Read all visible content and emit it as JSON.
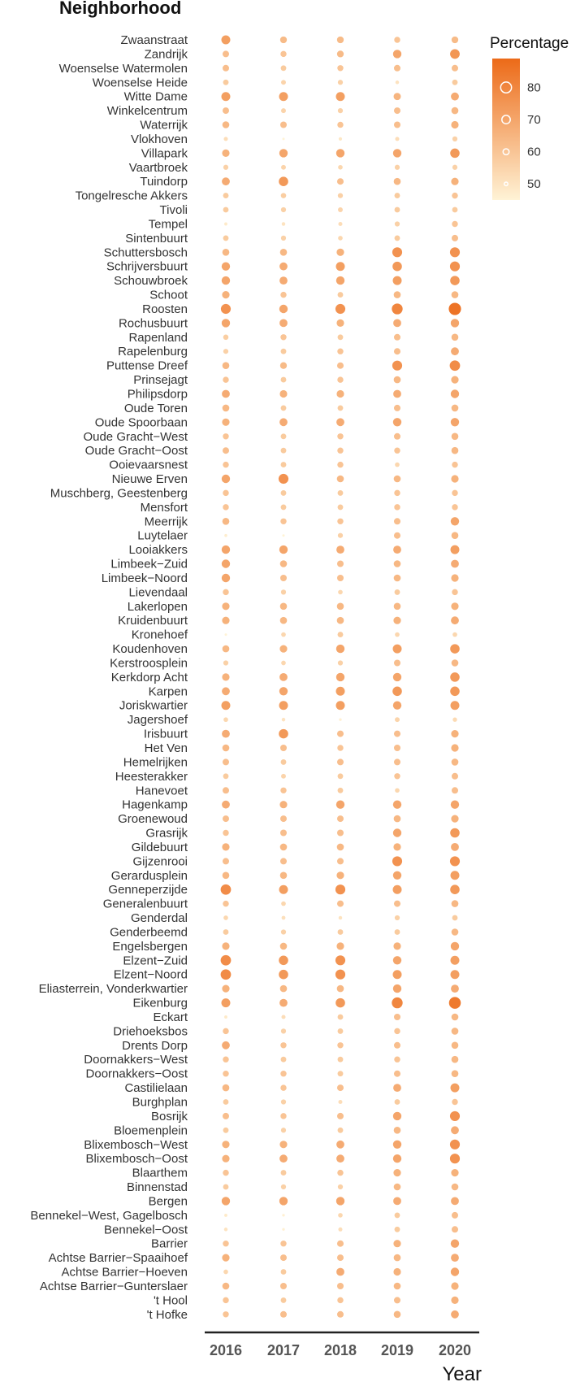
{
  "chart_data": {
    "type": "scatter",
    "title": "Neighborhood",
    "xlabel": "Year",
    "ylabel": "Neighborhood",
    "years": [
      "2016",
      "2017",
      "2018",
      "2019",
      "2020"
    ],
    "legend": {
      "title": "Percentage",
      "ticks": [
        80,
        70,
        60,
        50
      ],
      "range": [
        45,
        89
      ],
      "placement": "right",
      "color_low": "#fff3d6",
      "color_high": "#ec6a18"
    },
    "neighborhoods": [
      "Zwaanstraat",
      "Zandrijk",
      "Woenselse Watermolen",
      "Woenselse Heide",
      "Witte Dame",
      "Winkelcentrum",
      "Waterrijk",
      "Vlokhoven",
      "Villapark",
      "Vaartbroek",
      "Tuindorp",
      "Tongelresche Akkers",
      "Tivoli",
      "Tempel",
      "Sintenbuurt",
      "Schuttersbosch",
      "Schrijversbuurt",
      "Schouwbroek",
      "Schoot",
      "Roosten",
      "Rochusbuurt",
      "Rapenland",
      "Rapelenburg",
      "Puttense Dreef",
      "Prinsejagt",
      "Philipsdorp",
      "Oude Toren",
      "Oude Spoorbaan",
      "Oude Gracht−West",
      "Oude Gracht−Oost",
      "Ooievaarsnest",
      "Nieuwe Erven",
      "Muschberg, Geestenberg",
      "Mensfort",
      "Meerrijk",
      "Luytelaer",
      "Looiakkers",
      "Limbeek−Zuid",
      "Limbeek−Noord",
      "Lievendaal",
      "Lakerlopen",
      "Kruidenbuurt",
      "Kronehoef",
      "Koudenhoven",
      "Kerstroosplein",
      "Kerkdorp Acht",
      "Karpen",
      "Joriskwartier",
      "Jagershoef",
      "Irisbuurt",
      "Het Ven",
      "Hemelrijken",
      "Heesterakker",
      "Hanevoet",
      "Hagenkamp",
      "Groenewoud",
      "Grasrijk",
      "Gildebuurt",
      "Gijzenrooi",
      "Gerardusplein",
      "Genneperzijde",
      "Generalenbuurt",
      "Genderdal",
      "Genderbeemd",
      "Engelsbergen",
      "Elzent−Zuid",
      "Elzent−Noord",
      "Eliasterrein, Vonderkwartier",
      "Eikenburg",
      "Eckart",
      "Driehoeksbos",
      "Drents Dorp",
      "Doornakkers−West",
      "Doornakkers−Oost",
      "Castilielaan",
      "Burghplan",
      "Bosrijk",
      "Bloemenplein",
      "Blixembosch−West",
      "Blixembosch−Oost",
      "Blaarthem",
      "Binnenstad",
      "Bergen",
      "Bennekel−West, Gagelbosch",
      "Bennekel−Oost",
      "Barrier",
      "Achtse Barrier−Spaaihoef",
      "Achtse Barrier−Hoeven",
      "Achtse Barrier−Gunterslaer",
      "'t Hool",
      "'t Hofke"
    ],
    "values": [
      [
        72,
        63,
        63,
        60,
        63
      ],
      [
        62,
        60,
        63,
        70,
        75
      ],
      [
        62,
        58,
        60,
        62,
        62
      ],
      [
        58,
        55,
        56,
        50,
        58
      ],
      [
        72,
        72,
        72,
        65,
        68
      ],
      [
        62,
        55,
        56,
        62,
        64
      ],
      [
        64,
        62,
        60,
        62,
        66
      ],
      [
        52,
        45,
        49,
        52,
        56
      ],
      [
        66,
        70,
        70,
        70,
        74
      ],
      [
        56,
        55,
        54,
        56,
        56
      ],
      [
        68,
        74,
        62,
        64,
        66
      ],
      [
        58,
        57,
        56,
        58,
        60
      ],
      [
        58,
        56,
        55,
        58,
        58
      ],
      [
        48,
        50,
        52,
        56,
        60
      ],
      [
        58,
        56,
        54,
        58,
        62
      ],
      [
        64,
        64,
        66,
        76,
        76
      ],
      [
        70,
        68,
        72,
        74,
        76
      ],
      [
        70,
        68,
        70,
        72,
        74
      ],
      [
        66,
        60,
        58,
        64,
        64
      ],
      [
        76,
        70,
        76,
        80,
        86
      ],
      [
        70,
        68,
        66,
        68,
        70
      ],
      [
        57,
        60,
        58,
        62,
        64
      ],
      [
        56,
        58,
        60,
        62,
        68
      ],
      [
        64,
        63,
        62,
        76,
        78
      ],
      [
        60,
        58,
        60,
        64,
        66
      ],
      [
        68,
        66,
        66,
        68,
        70
      ],
      [
        64,
        58,
        58,
        62,
        64
      ],
      [
        66,
        68,
        68,
        70,
        70
      ],
      [
        60,
        58,
        60,
        62,
        64
      ],
      [
        62,
        58,
        60,
        60,
        64
      ],
      [
        60,
        58,
        60,
        54,
        60
      ],
      [
        70,
        76,
        64,
        64,
        66
      ],
      [
        60,
        58,
        58,
        60,
        60
      ],
      [
        60,
        58,
        58,
        60,
        60
      ],
      [
        64,
        60,
        60,
        62,
        70
      ],
      [
        47,
        45,
        56,
        62,
        64
      ],
      [
        70,
        70,
        68,
        68,
        72
      ],
      [
        70,
        64,
        62,
        64,
        68
      ],
      [
        70,
        62,
        62,
        64,
        66
      ],
      [
        60,
        56,
        54,
        58,
        60
      ],
      [
        66,
        64,
        64,
        64,
        66
      ],
      [
        66,
        64,
        64,
        66,
        68
      ],
      [
        45,
        54,
        58,
        54,
        54
      ],
      [
        64,
        66,
        70,
        72,
        74
      ],
      [
        56,
        54,
        56,
        62,
        64
      ],
      [
        66,
        68,
        70,
        70,
        74
      ],
      [
        68,
        70,
        72,
        74,
        74
      ],
      [
        72,
        72,
        72,
        70,
        72
      ],
      [
        54,
        50,
        46,
        55,
        53
      ],
      [
        68,
        74,
        62,
        62,
        66
      ],
      [
        64,
        62,
        60,
        62,
        66
      ],
      [
        62,
        58,
        62,
        62,
        64
      ],
      [
        58,
        55,
        58,
        60,
        62
      ],
      [
        62,
        60,
        58,
        54,
        62
      ],
      [
        68,
        66,
        70,
        70,
        70
      ],
      [
        62,
        62,
        62,
        64,
        66
      ],
      [
        60,
        62,
        62,
        70,
        74
      ],
      [
        66,
        64,
        64,
        66,
        68
      ],
      [
        62,
        62,
        62,
        76,
        76
      ],
      [
        64,
        64,
        66,
        70,
        72
      ],
      [
        78,
        72,
        76,
        72,
        74
      ],
      [
        60,
        54,
        62,
        62,
        64
      ],
      [
        54,
        51,
        50,
        56,
        58
      ],
      [
        58,
        56,
        58,
        58,
        64
      ],
      [
        66,
        64,
        66,
        66,
        70
      ],
      [
        78,
        74,
        76,
        70,
        72
      ],
      [
        78,
        74,
        76,
        72,
        72
      ],
      [
        66,
        64,
        64,
        70,
        68
      ],
      [
        72,
        68,
        74,
        80,
        84
      ],
      [
        48,
        52,
        58,
        62,
        64
      ],
      [
        60,
        56,
        58,
        60,
        64
      ],
      [
        68,
        60,
        60,
        62,
        64
      ],
      [
        60,
        58,
        58,
        60,
        64
      ],
      [
        60,
        60,
        58,
        62,
        64
      ],
      [
        64,
        60,
        62,
        68,
        72
      ],
      [
        58,
        56,
        52,
        58,
        60
      ],
      [
        62,
        60,
        62,
        70,
        76
      ],
      [
        58,
        56,
        58,
        64,
        68
      ],
      [
        66,
        66,
        68,
        70,
        76
      ],
      [
        66,
        68,
        68,
        70,
        76
      ],
      [
        60,
        58,
        60,
        66,
        66
      ],
      [
        58,
        56,
        56,
        64,
        64
      ],
      [
        70,
        70,
        70,
        68,
        68
      ],
      [
        48,
        46,
        54,
        58,
        62
      ],
      [
        50,
        46,
        52,
        58,
        62
      ],
      [
        60,
        60,
        62,
        66,
        70
      ],
      [
        66,
        62,
        62,
        64,
        68
      ],
      [
        54,
        58,
        68,
        66,
        70
      ],
      [
        64,
        62,
        62,
        64,
        66
      ],
      [
        60,
        58,
        60,
        62,
        66
      ],
      [
        60,
        62,
        62,
        64,
        68
      ]
    ]
  }
}
